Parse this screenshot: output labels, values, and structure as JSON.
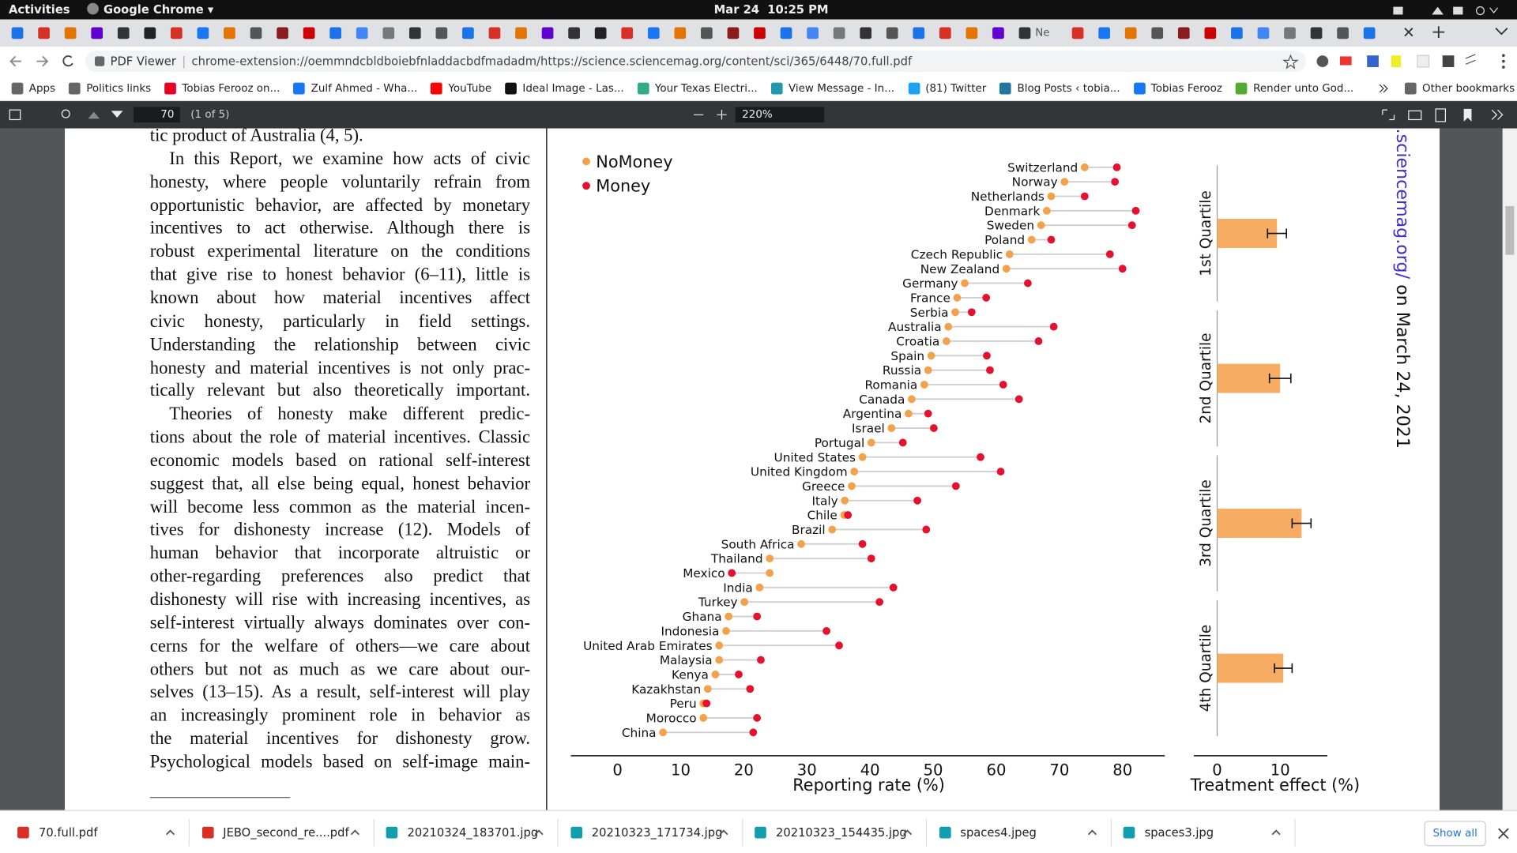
{
  "system_bar": {
    "activities": "Activities",
    "app": "Google Chrome ▾",
    "clock": "Mar 24  10:25 PM"
  },
  "tabs": {
    "tab_title": "Ne"
  },
  "address_bar": {
    "site_label": "PDF Viewer",
    "url": "chrome-extension://oemmndcbldboiebfnladdacbdfmadadm/https://science.sciencemag.org/content/sci/365/6448/70.full.pdf"
  },
  "bookmarks": {
    "items": [
      "Apps",
      "Politics links",
      "Tobias Ferooz on...",
      "Zulf Ahmed - Wha...",
      "YouTube",
      "Ideal Image - Las...",
      "Your Texas Electri...",
      "View Message - In...",
      "(81) Twitter",
      "Blog Posts ‹ tobia...",
      "Tobias Ferooz",
      "Render unto God..."
    ],
    "other": "Other bookmarks"
  },
  "pdf_toolbar": {
    "page": "70",
    "page_count": "(1 of 5)",
    "zoom": "220%"
  },
  "paper": {
    "lines": [
      "tic product of Australia (4, 5).",
      "In this Report, we examine how acts of civic",
      "honesty, where people voluntarily refrain from",
      "opportunistic behavior, are affected by monetary",
      "incentives to act otherwise. Although there is",
      "robust experimental literature on the conditions",
      "that give rise to honest behavior (6–11), little is",
      "known about how material incentives affect",
      "civic honesty, particularly in field settings.",
      "Understanding the relationship between civic",
      "honesty and material incentives is not only prac-",
      "tically relevant but also theoretically important.",
      "Theories of honesty make different predic-",
      "tions about the role of material incentives. Classic",
      "economic models based on rational self-interest",
      "suggest that, all else being equal, honest behavior",
      "will become less common as the material incen-",
      "tives for dishonesty increase (12). Models of",
      "human behavior that incorporate altruistic or",
      "other-regarding preferences also predict that",
      "dishonesty will rise with increasing incentives, as",
      "self-interest virtually always dominates over con-",
      "cerns for the welfare of others—we care about",
      "others but not as much as we care about our-",
      "selves (13–15). As a result, self-interest will play",
      "an increasingly prominent role in behavior as",
      "the material incentives for dishonesty grow.",
      "Psychological models based on self-image main-"
    ],
    "side_note": {
      "link": ".sciencemag.org/",
      "text": " on March 24, 2021"
    }
  },
  "chart_data": [
    {
      "type": "dumbbell",
      "categories": [
        "Switzerland",
        "Norway",
        "Netherlands",
        "Denmark",
        "Sweden",
        "Poland",
        "Czech Republic",
        "New Zealand",
        "Germany",
        "France",
        "Serbia",
        "Australia",
        "Croatia",
        "Spain",
        "Russia",
        "Romania",
        "Canada",
        "Argentina",
        "Israel",
        "Portugal",
        "United States",
        "United Kingdom",
        "Greece",
        "Italy",
        "Chile",
        "Brazil",
        "South Africa",
        "Thailand",
        "Mexico",
        "India",
        "Turkey",
        "Ghana",
        "Indonesia",
        "United Arab Emirates",
        "Malaysia",
        "Kenya",
        "Kazakhstan",
        "Peru",
        "Morocco",
        "China"
      ],
      "series": [
        {
          "name": "NoMoney",
          "color": "#f4a14c",
          "values": [
            74.0,
            70.8,
            68.7,
            68.0,
            67.1,
            65.6,
            62.1,
            61.6,
            55.0,
            53.8,
            53.5,
            52.4,
            52.1,
            49.7,
            49.2,
            48.6,
            46.6,
            46.1,
            43.4,
            40.2,
            38.8,
            37.5,
            37.1,
            36.0,
            35.9,
            34.0,
            29.1,
            24.1,
            24.1,
            22.5,
            20.1,
            17.6,
            17.2,
            16.1,
            16.1,
            15.5,
            14.3,
            13.6,
            13.6,
            7.2
          ]
        },
        {
          "name": "Money",
          "color": "#e4112f",
          "values": [
            79.1,
            78.8,
            74.0,
            82.1,
            81.5,
            68.7,
            78.0,
            80.0,
            65.0,
            58.4,
            56.1,
            69.1,
            66.7,
            58.5,
            59.0,
            61.1,
            63.6,
            49.2,
            50.1,
            45.2,
            57.5,
            60.7,
            53.6,
            47.5,
            36.5,
            48.9,
            38.8,
            40.2,
            18.1,
            43.7,
            41.5,
            22.1,
            33.1,
            35.1,
            22.7,
            19.2,
            21.0,
            14.1,
            22.1,
            21.5
          ]
        }
      ],
      "x_label": "Reporting rate (%)",
      "xlim": [
        -7.4,
        86.7
      ],
      "xticks": [
        0,
        10,
        20,
        30,
        40,
        50,
        60,
        70,
        80
      ],
      "legend": "top-left"
    },
    {
      "type": "hbar",
      "categories": [
        "1st Quartile",
        "2nd Quartile",
        "3rd Quartile",
        "4th Quartile"
      ],
      "values": [
        9.5,
        10.0,
        13.4,
        10.5
      ],
      "errors": [
        1.5,
        1.7,
        1.5,
        1.4
      ],
      "color": "#f6ac62",
      "x_label": "Treatment effect (%)",
      "xlim": [
        -3.7,
        17.5
      ],
      "xticks": [
        0,
        10
      ]
    }
  ],
  "downloads": {
    "files": [
      "70.full.pdf",
      "JEBO_second_re....pdf",
      "20210324_183701.jpg",
      "20210323_171734.jpg",
      "20210323_154435.jpg",
      "spaces4.jpeg",
      "spaces3.jpg"
    ],
    "show_all": "Show all"
  }
}
